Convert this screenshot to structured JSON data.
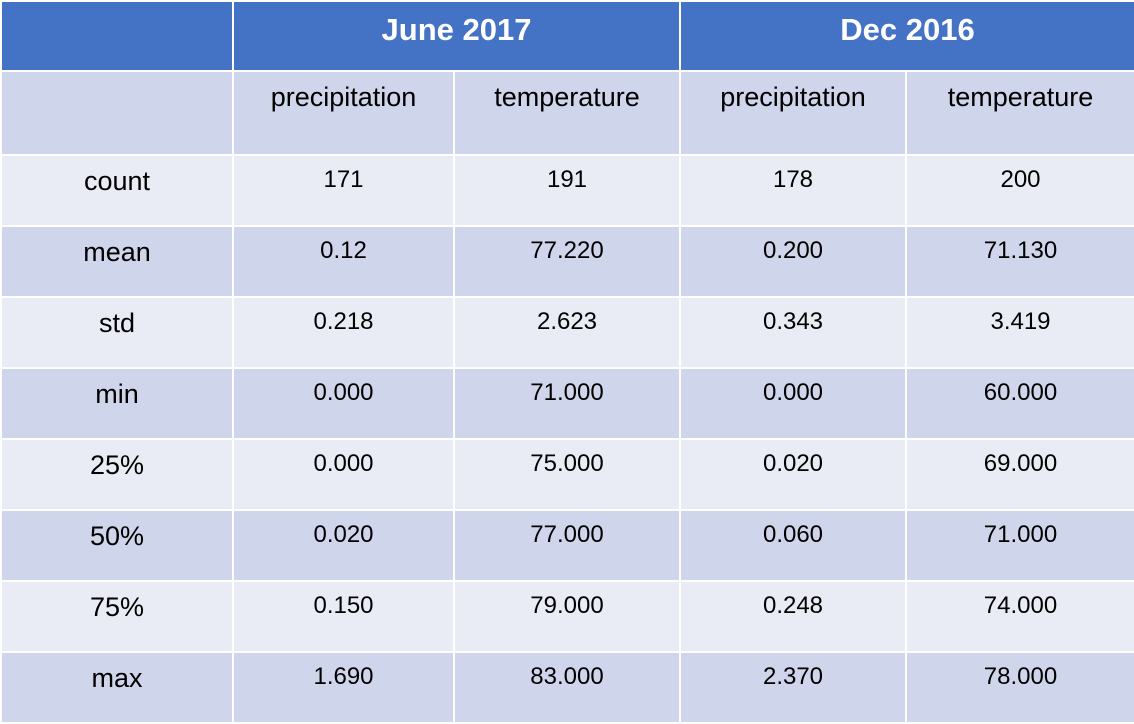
{
  "table": {
    "groups": [
      {
        "label": "June 2017"
      },
      {
        "label": "Dec 2016"
      }
    ],
    "columns": [
      "precipitation",
      "temperature",
      "precipitation",
      "temperature"
    ],
    "rows": [
      {
        "label": "count",
        "values": [
          "171",
          "191",
          "178",
          "200"
        ]
      },
      {
        "label": "mean",
        "values": [
          "0.12",
          "77.220",
          "0.200",
          "71.130"
        ]
      },
      {
        "label": "std",
        "values": [
          "0.218",
          "2.623",
          "0.343",
          "3.419"
        ]
      },
      {
        "label": "min",
        "values": [
          "0.000",
          "71.000",
          "0.000",
          "60.000"
        ]
      },
      {
        "label": "25%",
        "values": [
          "0.000",
          "75.000",
          "0.020",
          "69.000"
        ]
      },
      {
        "label": "50%",
        "values": [
          "0.020",
          "77.000",
          "0.060",
          "71.000"
        ]
      },
      {
        "label": "75%",
        "values": [
          "0.150",
          "79.000",
          "0.248",
          "74.000"
        ]
      },
      {
        "label": "max",
        "values": [
          "1.690",
          "83.000",
          "2.370",
          "78.000"
        ]
      }
    ],
    "colors": {
      "header": "#4472c4",
      "band_dark": "#cfd5ea",
      "band_light": "#e9ebf5"
    }
  }
}
